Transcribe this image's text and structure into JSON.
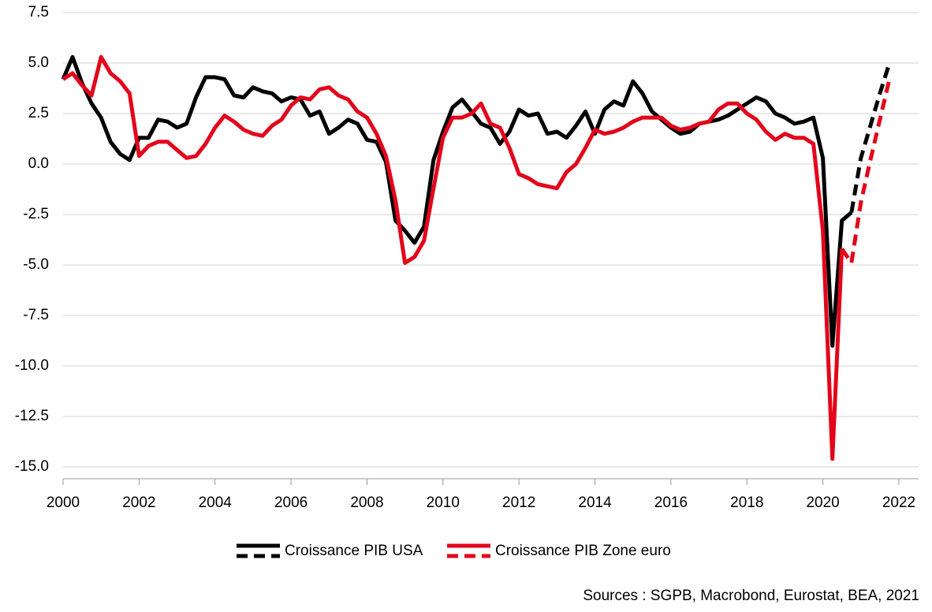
{
  "chart_data": {
    "type": "line",
    "source": "Sources : SGPB, Macrobond, Eurostat, BEA, 2021",
    "x": [
      2000,
      2000.25,
      2000.5,
      2000.75,
      2001,
      2001.25,
      2001.5,
      2001.75,
      2002,
      2002.25,
      2002.5,
      2002.75,
      2003,
      2003.25,
      2003.5,
      2003.75,
      2004,
      2004.25,
      2004.5,
      2004.75,
      2005,
      2005.25,
      2005.5,
      2005.75,
      2006,
      2006.25,
      2006.5,
      2006.75,
      2007,
      2007.25,
      2007.5,
      2007.75,
      2008,
      2008.25,
      2008.5,
      2008.75,
      2009,
      2009.25,
      2009.5,
      2009.75,
      2010,
      2010.25,
      2010.5,
      2010.75,
      2011,
      2011.25,
      2011.5,
      2011.75,
      2012,
      2012.25,
      2012.5,
      2012.75,
      2013,
      2013.25,
      2013.5,
      2013.75,
      2014,
      2014.25,
      2014.5,
      2014.75,
      2015,
      2015.25,
      2015.5,
      2015.75,
      2016,
      2016.25,
      2016.5,
      2016.75,
      2017,
      2017.25,
      2017.5,
      2017.75,
      2018,
      2018.25,
      2018.5,
      2018.75,
      2019,
      2019.25,
      2019.5,
      2019.75,
      2020,
      2020.25,
      2020.5,
      2020.75,
      2021,
      2021.25,
      2021.5,
      2021.75
    ],
    "series": [
      {
        "name": "Croissance PIB USA",
        "color": "#000000",
        "dashed_from": 2020.75,
        "values": [
          4.2,
          5.3,
          4.0,
          3.0,
          2.3,
          1.1,
          0.5,
          0.2,
          1.3,
          1.3,
          2.2,
          2.1,
          1.8,
          2.0,
          3.3,
          4.3,
          4.3,
          4.2,
          3.4,
          3.3,
          3.8,
          3.6,
          3.5,
          3.1,
          3.3,
          3.2,
          2.4,
          2.6,
          1.5,
          1.8,
          2.2,
          2.0,
          1.2,
          1.1,
          0.1,
          -2.8,
          -3.3,
          -3.9,
          -3.1,
          0.2,
          1.6,
          2.8,
          3.2,
          2.6,
          2.0,
          1.8,
          1.0,
          1.6,
          2.7,
          2.4,
          2.5,
          1.5,
          1.6,
          1.3,
          1.9,
          2.6,
          1.5,
          2.7,
          3.1,
          2.9,
          4.1,
          3.5,
          2.6,
          2.2,
          1.8,
          1.5,
          1.6,
          2.0,
          2.1,
          2.2,
          2.4,
          2.7,
          3.0,
          3.3,
          3.1,
          2.5,
          2.3,
          2.0,
          2.1,
          2.3,
          0.3,
          -9.0,
          -2.8,
          -2.4,
          0.3,
          1.9,
          3.5,
          5.0
        ]
      },
      {
        "name": "Croissance PIB Zone euro",
        "color": "#e3051b",
        "dashed_from": 2020.5,
        "values": [
          4.2,
          4.5,
          3.9,
          3.4,
          5.3,
          4.5,
          4.1,
          3.5,
          0.4,
          0.9,
          1.1,
          1.1,
          0.7,
          0.3,
          0.4,
          1.0,
          1.8,
          2.4,
          2.1,
          1.7,
          1.5,
          1.4,
          1.9,
          2.2,
          2.9,
          3.3,
          3.2,
          3.7,
          3.8,
          3.4,
          3.2,
          2.6,
          2.3,
          1.5,
          0.4,
          -1.8,
          -4.9,
          -4.6,
          -3.8,
          -1.2,
          1.3,
          2.3,
          2.3,
          2.5,
          3.0,
          2.0,
          1.8,
          0.8,
          -0.5,
          -0.7,
          -1.0,
          -1.1,
          -1.2,
          -0.4,
          0.0,
          0.8,
          1.7,
          1.5,
          1.6,
          1.8,
          2.1,
          2.3,
          2.3,
          2.3,
          1.9,
          1.7,
          1.8,
          2.0,
          2.1,
          2.7,
          3.0,
          3.0,
          2.5,
          2.2,
          1.6,
          1.2,
          1.5,
          1.3,
          1.3,
          1.0,
          -3.3,
          -14.6,
          -4.2,
          -4.9,
          -1.9,
          0.2,
          2.2,
          4.2
        ]
      }
    ],
    "xlim": [
      2000,
      2022
    ],
    "xticks": [
      2000,
      2002,
      2004,
      2006,
      2008,
      2010,
      2012,
      2014,
      2016,
      2018,
      2020,
      2022
    ],
    "ylim": [
      -15,
      7.5
    ],
    "yticks": [
      7.5,
      {
        "value": 5,
        "label": "5.0"
      },
      2.5,
      {
        "value": 0,
        "label": "0.0"
      },
      -2.5,
      {
        "value": -5,
        "label": "-5.0"
      },
      -7.5,
      {
        "value": -10,
        "label": "-10.0"
      },
      -12.5,
      {
        "value": -15,
        "label": "-15.0"
      }
    ],
    "grid": true,
    "legend": "bottom"
  }
}
